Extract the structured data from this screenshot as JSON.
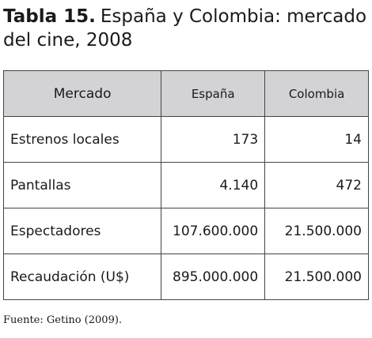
{
  "header": {
    "label": "Tabla 15.",
    "title": "España y Colombia: mercado del cine, 2008"
  },
  "table": {
    "columns": [
      "Mercado",
      "España",
      "Colombia"
    ],
    "rows": [
      [
        "Estrenos locales",
        "173",
        "14"
      ],
      [
        "Pantallas",
        "4.140",
        "472"
      ],
      [
        "Espectadores",
        "107.600.000",
        "21.500.000"
      ],
      [
        "Recaudación (U$)",
        "895.000.000",
        "21.500.000"
      ]
    ]
  },
  "footer": {
    "source": "Fuente: Getino (2009)."
  }
}
